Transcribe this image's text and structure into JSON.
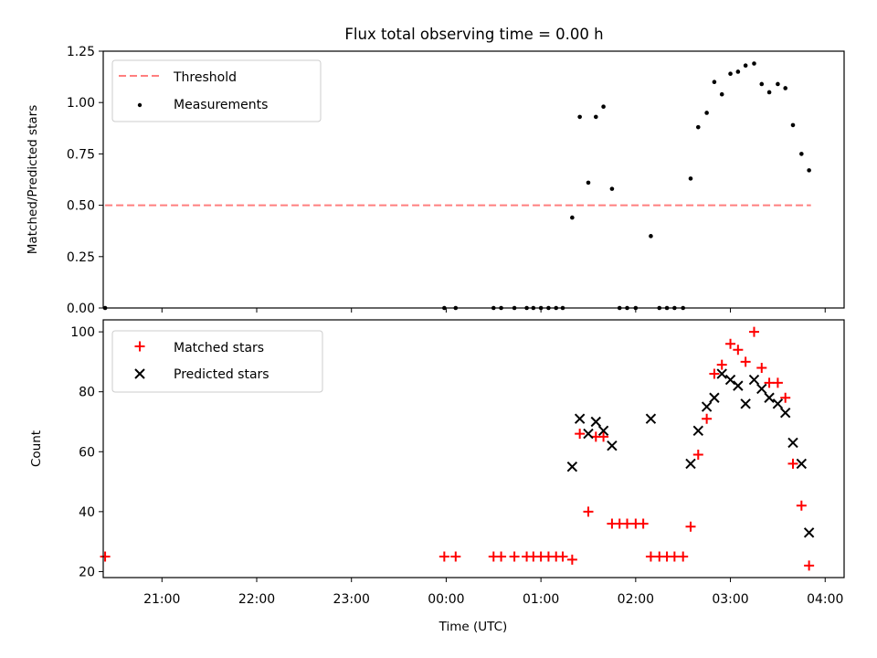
{
  "title": "Flux total observing time = 0.00 h",
  "colors": {
    "threshold": "#ff7f7f",
    "measurements": "#000000",
    "matched": "#ff0000",
    "predicted": "#000000"
  },
  "chart_data": [
    {
      "type": "scatter",
      "title": "Flux total observing time = 0.00 h",
      "xlabel": "",
      "ylabel": "Matched/Predicted stars",
      "xlim": [
        -3.62,
        4.2
      ],
      "ylim": [
        0,
        1.25
      ],
      "yticks": [
        "0.00",
        "0.25",
        "0.50",
        "0.75",
        "1.00",
        "1.25"
      ],
      "legend": "top-left",
      "grid": false,
      "threshold": {
        "name": "Threshold",
        "y": 0.5,
        "x": [
          -3.6,
          3.85
        ]
      },
      "series": [
        {
          "name": "Measurements",
          "points": [
            [
              -3.6,
              0
            ],
            [
              -0.02,
              0
            ],
            [
              0.1,
              0
            ],
            [
              0.5,
              0
            ],
            [
              0.58,
              0
            ],
            [
              0.72,
              0
            ],
            [
              0.85,
              0
            ],
            [
              0.92,
              0
            ],
            [
              1.0,
              0
            ],
            [
              1.08,
              0
            ],
            [
              1.16,
              0
            ],
            [
              1.23,
              0
            ],
            [
              1.33,
              0.44
            ],
            [
              1.41,
              0.93
            ],
            [
              1.5,
              0.61
            ],
            [
              1.58,
              0.93
            ],
            [
              1.66,
              0.98
            ],
            [
              1.75,
              0.58
            ],
            [
              1.83,
              0
            ],
            [
              1.91,
              0
            ],
            [
              2.0,
              0
            ],
            [
              2.16,
              0.35
            ],
            [
              2.25,
              0
            ],
            [
              2.33,
              0
            ],
            [
              2.41,
              0
            ],
            [
              2.5,
              0
            ],
            [
              2.58,
              0.63
            ],
            [
              2.66,
              0.88
            ],
            [
              2.75,
              0.95
            ],
            [
              2.83,
              1.1
            ],
            [
              2.91,
              1.04
            ],
            [
              3.0,
              1.14
            ],
            [
              3.08,
              1.15
            ],
            [
              3.16,
              1.18
            ],
            [
              3.25,
              1.19
            ],
            [
              3.33,
              1.09
            ],
            [
              3.41,
              1.05
            ],
            [
              3.5,
              1.09
            ],
            [
              3.58,
              1.07
            ],
            [
              3.66,
              0.89
            ],
            [
              3.75,
              0.75
            ],
            [
              3.83,
              0.67
            ]
          ]
        }
      ]
    },
    {
      "type": "scatter",
      "title": "",
      "xlabel": "Time (UTC)",
      "ylabel": "Count",
      "xlim": [
        -3.62,
        4.2
      ],
      "ylim": [
        18,
        104
      ],
      "yticks": [
        "20",
        "40",
        "60",
        "80",
        "100"
      ],
      "xticks": [
        "21:00",
        "22:00",
        "23:00",
        "00:00",
        "01:00",
        "02:00",
        "03:00",
        "04:00"
      ],
      "legend": "top-left",
      "grid": false,
      "series": [
        {
          "name": "Matched stars",
          "points": [
            [
              -3.6,
              25
            ],
            [
              -0.02,
              25
            ],
            [
              0.1,
              25
            ],
            [
              0.5,
              25
            ],
            [
              0.58,
              25
            ],
            [
              0.72,
              25
            ],
            [
              0.85,
              25
            ],
            [
              0.92,
              25
            ],
            [
              1.0,
              25
            ],
            [
              1.08,
              25
            ],
            [
              1.16,
              25
            ],
            [
              1.23,
              25
            ],
            [
              1.33,
              24
            ],
            [
              1.41,
              66
            ],
            [
              1.5,
              40
            ],
            [
              1.58,
              65
            ],
            [
              1.66,
              65
            ],
            [
              1.75,
              36
            ],
            [
              1.83,
              36
            ],
            [
              1.91,
              36
            ],
            [
              2.0,
              36
            ],
            [
              2.08,
              36
            ],
            [
              2.16,
              25
            ],
            [
              2.25,
              25
            ],
            [
              2.33,
              25
            ],
            [
              2.41,
              25
            ],
            [
              2.5,
              25
            ],
            [
              2.58,
              35
            ],
            [
              2.66,
              59
            ],
            [
              2.75,
              71
            ],
            [
              2.83,
              86
            ],
            [
              2.91,
              89
            ],
            [
              3.0,
              96
            ],
            [
              3.08,
              94
            ],
            [
              3.16,
              90
            ],
            [
              3.25,
              100
            ],
            [
              3.33,
              88
            ],
            [
              3.41,
              83
            ],
            [
              3.5,
              83
            ],
            [
              3.58,
              78
            ],
            [
              3.66,
              56
            ],
            [
              3.75,
              42
            ],
            [
              3.83,
              22
            ]
          ]
        },
        {
          "name": "Predicted stars",
          "points": [
            [
              1.33,
              55
            ],
            [
              1.41,
              71
            ],
            [
              1.5,
              66
            ],
            [
              1.58,
              70
            ],
            [
              1.66,
              67
            ],
            [
              1.75,
              62
            ],
            [
              2.16,
              71
            ],
            [
              2.58,
              56
            ],
            [
              2.66,
              67
            ],
            [
              2.75,
              75
            ],
            [
              2.83,
              78
            ],
            [
              2.91,
              86
            ],
            [
              3.0,
              84
            ],
            [
              3.08,
              82
            ],
            [
              3.16,
              76
            ],
            [
              3.25,
              84
            ],
            [
              3.33,
              81
            ],
            [
              3.41,
              78
            ],
            [
              3.5,
              76
            ],
            [
              3.58,
              73
            ],
            [
              3.66,
              63
            ],
            [
              3.75,
              56
            ],
            [
              3.83,
              33
            ]
          ]
        }
      ]
    }
  ]
}
